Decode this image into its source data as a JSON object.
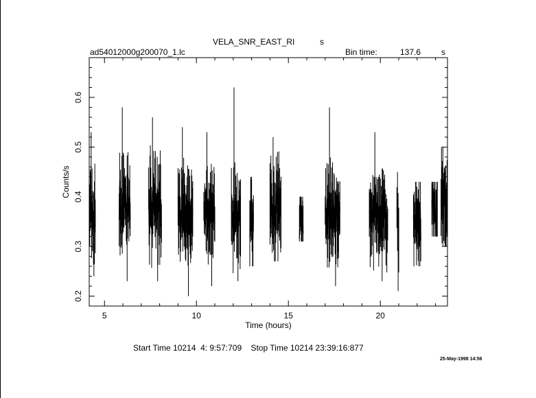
{
  "header": {
    "object": "VELA_SNR_EAST_RI",
    "object_unit": "s",
    "filename": "ad54012000g200070_1.lc",
    "bin_label": "Bin time:",
    "bin_value": "137.6",
    "bin_unit": "s"
  },
  "footer": {
    "start_label": "Start Time",
    "start_value": "10214  4: 9:57:709",
    "stop_label": "Stop Time",
    "stop_value": "10214 23:39:16:877"
  },
  "stamp": "25-May-1998 14:56",
  "chart_data": {
    "type": "line",
    "title": "VELA_SNR_EAST_RI",
    "subtitle": "ad54012000g200070_1.lc",
    "xlabel": "Time (hours)",
    "ylabel": "Counts/s",
    "xlim": [
      4.17,
      23.65
    ],
    "ylim": [
      0.18,
      0.68
    ],
    "xticks": [
      5,
      10,
      15,
      20
    ],
    "xticklabels": [
      "5",
      "10",
      "15",
      "20"
    ],
    "yticks": [
      0.2,
      0.3,
      0.4,
      0.5,
      0.6
    ],
    "yticklabels": [
      "0.2",
      "0.3",
      "0.4",
      "0.5",
      "0.6"
    ],
    "grid": false,
    "series": [
      {
        "style": "error bars",
        "segments": [
          {
            "x": [
              4.2,
              4.5
            ],
            "y_range": [
              0.24,
              0.53
            ],
            "mean": 0.37
          },
          {
            "x": [
              5.8,
              6.4
            ],
            "y_range": [
              0.23,
              0.58
            ],
            "mean": 0.38
          },
          {
            "x": [
              7.4,
              8.1
            ],
            "y_range": [
              0.23,
              0.56
            ],
            "mean": 0.38
          },
          {
            "x": [
              9.0,
              9.8
            ],
            "y_range": [
              0.2,
              0.54
            ],
            "mean": 0.36
          },
          {
            "x": [
              10.4,
              11.0
            ],
            "y_range": [
              0.22,
              0.53
            ],
            "mean": 0.37
          },
          {
            "x": [
              11.9,
              12.4
            ],
            "y_range": [
              0.23,
              0.62
            ],
            "mean": 0.36
          },
          {
            "x": [
              12.9,
              13.1
            ],
            "y_range": [
              0.26,
              0.44
            ],
            "mean": 0.35
          },
          {
            "x": [
              14.0,
              14.6
            ],
            "y_range": [
              0.27,
              0.52
            ],
            "mean": 0.38
          },
          {
            "x": [
              15.6,
              15.8
            ],
            "y_range": [
              0.31,
              0.4
            ],
            "mean": 0.35
          },
          {
            "x": [
              17.0,
              17.8
            ],
            "y_range": [
              0.22,
              0.58
            ],
            "mean": 0.37
          },
          {
            "x": [
              19.4,
              20.4
            ],
            "y_range": [
              0.23,
              0.53
            ],
            "mean": 0.36
          },
          {
            "x": [
              20.9,
              21.0
            ],
            "y_range": [
              0.21,
              0.45
            ],
            "mean": 0.34
          },
          {
            "x": [
              21.8,
              22.2
            ],
            "y_range": [
              0.26,
              0.43
            ],
            "mean": 0.35
          },
          {
            "x": [
              22.8,
              23.1
            ],
            "y_range": [
              0.32,
              0.43
            ],
            "mean": 0.38
          },
          {
            "x": [
              23.3,
              23.65
            ],
            "y_range": [
              0.3,
              0.5
            ],
            "mean": 0.39
          }
        ]
      }
    ]
  }
}
